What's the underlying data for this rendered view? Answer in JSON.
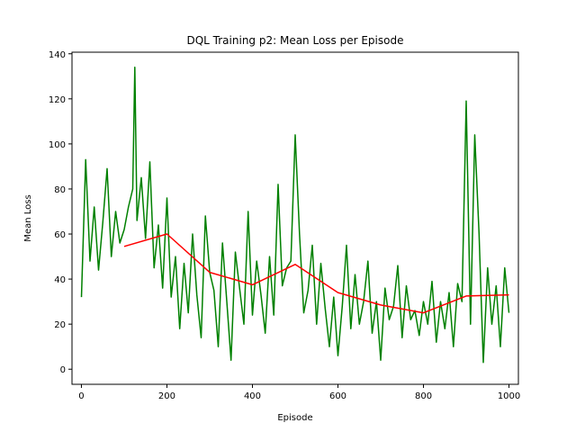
{
  "chart_data": {
    "type": "line",
    "title": "DQL Training p2: Mean Loss per Episode",
    "xlabel": "Episode",
    "ylabel": "Mean Loss",
    "xlim": [
      -22,
      1022
    ],
    "ylim": [
      -6.7,
      140.7
    ],
    "xticks": [
      0,
      200,
      400,
      600,
      800,
      1000
    ],
    "yticks": [
      0,
      20,
      40,
      60,
      80,
      100,
      120,
      140
    ],
    "grid": false,
    "legend": "none",
    "series": [
      {
        "color": "#008000",
        "style": "noisy raw per-episode mean loss (one value per episode, 1000 episodes)",
        "x": [
          0,
          10,
          20,
          30,
          40,
          50,
          60,
          70,
          80,
          90,
          100,
          110,
          120,
          125,
          130,
          140,
          150,
          160,
          170,
          180,
          190,
          200,
          210,
          220,
          230,
          240,
          250,
          260,
          270,
          280,
          290,
          300,
          310,
          320,
          330,
          340,
          350,
          360,
          370,
          380,
          390,
          400,
          410,
          420,
          430,
          440,
          450,
          460,
          470,
          480,
          490,
          500,
          510,
          520,
          530,
          540,
          550,
          560,
          570,
          580,
          590,
          600,
          610,
          620,
          630,
          640,
          650,
          660,
          670,
          680,
          690,
          700,
          710,
          720,
          730,
          740,
          750,
          760,
          770,
          780,
          790,
          800,
          810,
          820,
          830,
          840,
          850,
          860,
          870,
          880,
          890,
          900,
          910,
          920,
          930,
          940,
          950,
          960,
          970,
          980,
          990,
          1000
        ],
        "y": [
          32,
          93,
          48,
          72,
          44,
          65,
          89,
          50,
          70,
          56,
          62,
          72,
          80,
          134,
          66,
          85,
          58,
          92,
          45,
          64,
          36,
          76,
          32,
          50,
          18,
          47,
          25,
          60,
          33,
          14,
          68,
          43,
          35,
          10,
          56,
          30,
          4,
          52,
          36,
          20,
          70,
          24,
          48,
          33,
          16,
          50,
          24,
          82,
          37,
          45,
          48,
          104,
          60,
          25,
          35,
          55,
          20,
          47,
          27,
          10,
          32,
          6,
          28,
          55,
          18,
          42,
          20,
          30,
          48,
          16,
          30,
          4,
          36,
          22,
          28,
          46,
          14,
          37,
          22,
          26,
          15,
          30,
          20,
          39,
          12,
          30,
          18,
          34,
          10,
          38,
          30,
          119,
          20,
          104,
          60,
          3,
          45,
          20,
          37,
          10,
          45,
          25
        ]
      },
      {
        "color": "#ff0000",
        "style": "smoothed average",
        "x": [
          100,
          200,
          300,
          400,
          500,
          600,
          700,
          800,
          900,
          1000
        ],
        "y": [
          54.5,
          60,
          43,
          37.5,
          46.5,
          34,
          28.5,
          25,
          32.5,
          33
        ]
      }
    ]
  }
}
